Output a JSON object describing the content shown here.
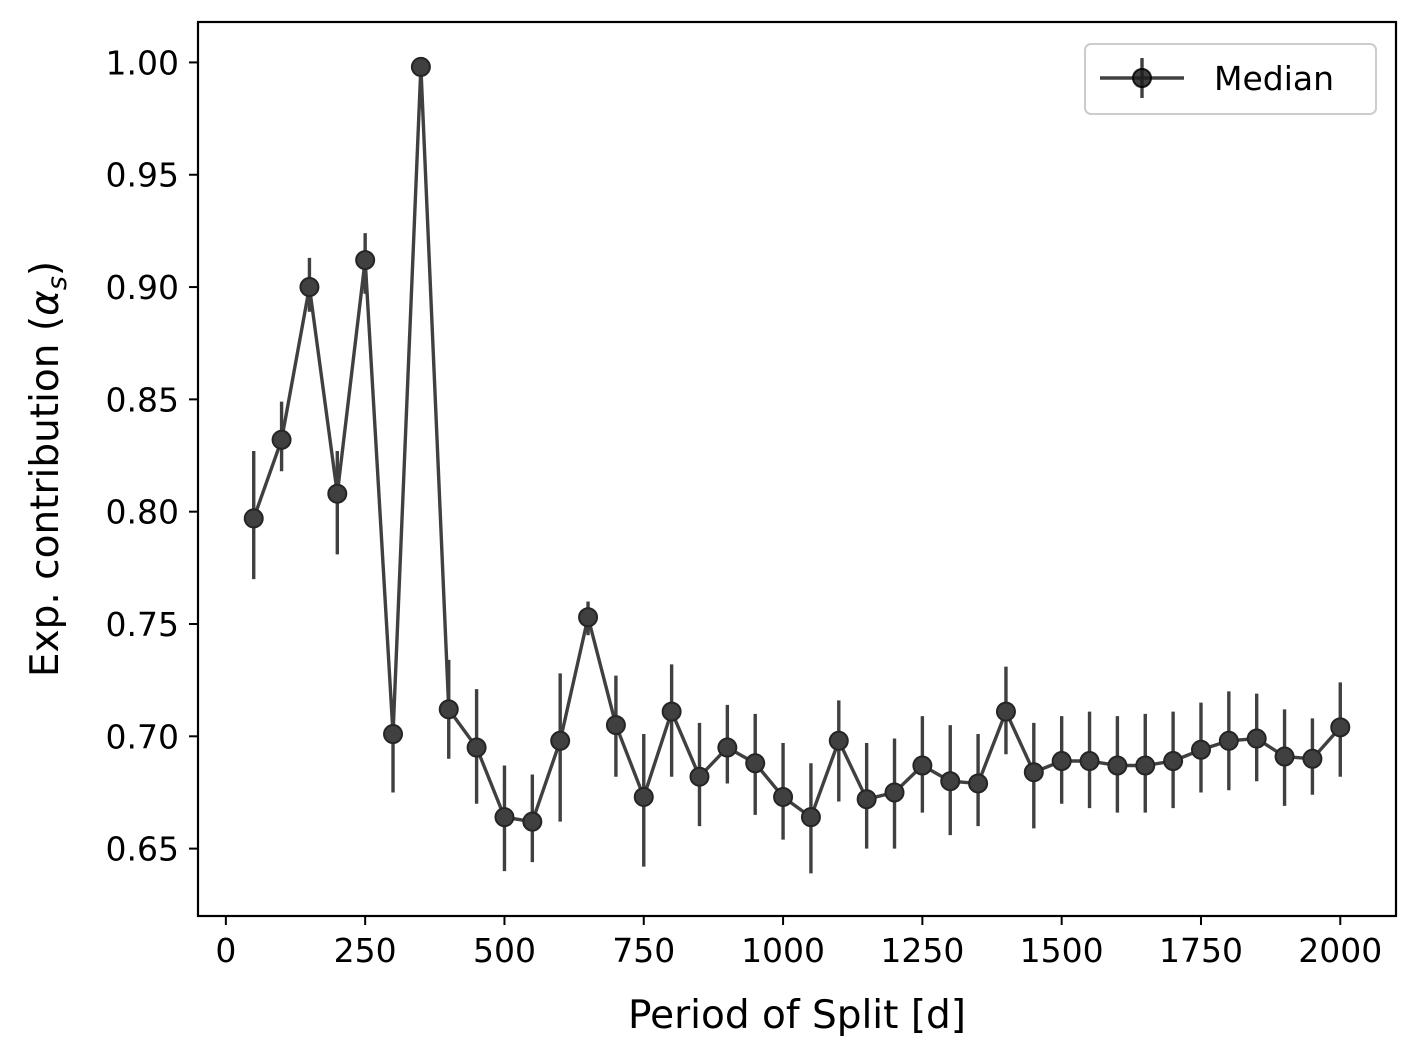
{
  "chart_data": {
    "type": "line",
    "title": "",
    "xlabel": "Period of Split [d]",
    "ylabel_main": "Exp. contribution (",
    "ylabel_symbol": "α",
    "ylabel_sub": "s",
    "ylabel_close": ")",
    "xlim": [
      -50,
      2100
    ],
    "ylim": [
      0.62,
      1.018
    ],
    "xticks": [
      0,
      250,
      500,
      750,
      1000,
      1250,
      1500,
      1750,
      2000
    ],
    "xtick_labels": [
      "0",
      "250",
      "500",
      "750",
      "1000",
      "1250",
      "1500",
      "1750",
      "2000"
    ],
    "yticks": [
      0.65,
      0.7,
      0.75,
      0.8,
      0.85,
      0.9,
      0.95,
      1.0
    ],
    "ytick_labels": [
      "0.65",
      "0.70",
      "0.75",
      "0.80",
      "0.85",
      "0.90",
      "0.95",
      "1.00"
    ],
    "grid": false,
    "legend_position": "top-right",
    "color": "#1f1f1f",
    "series": [
      {
        "name": "Median",
        "x": [
          50,
          100,
          150,
          200,
          250,
          300,
          350,
          400,
          450,
          500,
          550,
          600,
          650,
          700,
          750,
          800,
          850,
          900,
          950,
          1000,
          1050,
          1100,
          1150,
          1200,
          1250,
          1300,
          1350,
          1400,
          1450,
          1500,
          1550,
          1600,
          1650,
          1700,
          1750,
          1800,
          1850,
          1900,
          1950,
          2000
        ],
        "y": [
          0.797,
          0.832,
          0.9,
          0.808,
          0.912,
          0.701,
          0.998,
          0.712,
          0.695,
          0.664,
          0.662,
          0.698,
          0.753,
          0.705,
          0.673,
          0.711,
          0.682,
          0.695,
          0.688,
          0.673,
          0.664,
          0.698,
          0.672,
          0.675,
          0.687,
          0.68,
          0.679,
          0.711,
          0.684,
          0.689,
          0.689,
          0.687,
          0.687,
          0.689,
          0.694,
          0.698,
          0.699,
          0.691,
          0.69,
          0.704
        ],
        "y_lower": [
          0.77,
          0.818,
          0.889,
          0.781,
          0.897,
          0.675,
          0.998,
          0.69,
          0.67,
          0.64,
          0.644,
          0.662,
          0.745,
          0.682,
          0.642,
          0.682,
          0.66,
          0.679,
          0.665,
          0.654,
          0.639,
          0.671,
          0.65,
          0.65,
          0.666,
          0.656,
          0.66,
          0.692,
          0.659,
          0.67,
          0.668,
          0.666,
          0.666,
          0.668,
          0.675,
          0.676,
          0.68,
          0.669,
          0.674,
          0.682
        ],
        "y_upper": [
          0.827,
          0.849,
          0.913,
          0.827,
          0.924,
          0.712,
          1.0,
          0.734,
          0.721,
          0.687,
          0.683,
          0.728,
          0.76,
          0.727,
          0.701,
          0.732,
          0.706,
          0.714,
          0.71,
          0.697,
          0.688,
          0.716,
          0.697,
          0.699,
          0.709,
          0.705,
          0.701,
          0.731,
          0.706,
          0.709,
          0.711,
          0.709,
          0.71,
          0.711,
          0.715,
          0.72,
          0.719,
          0.712,
          0.708,
          0.724
        ]
      }
    ]
  }
}
